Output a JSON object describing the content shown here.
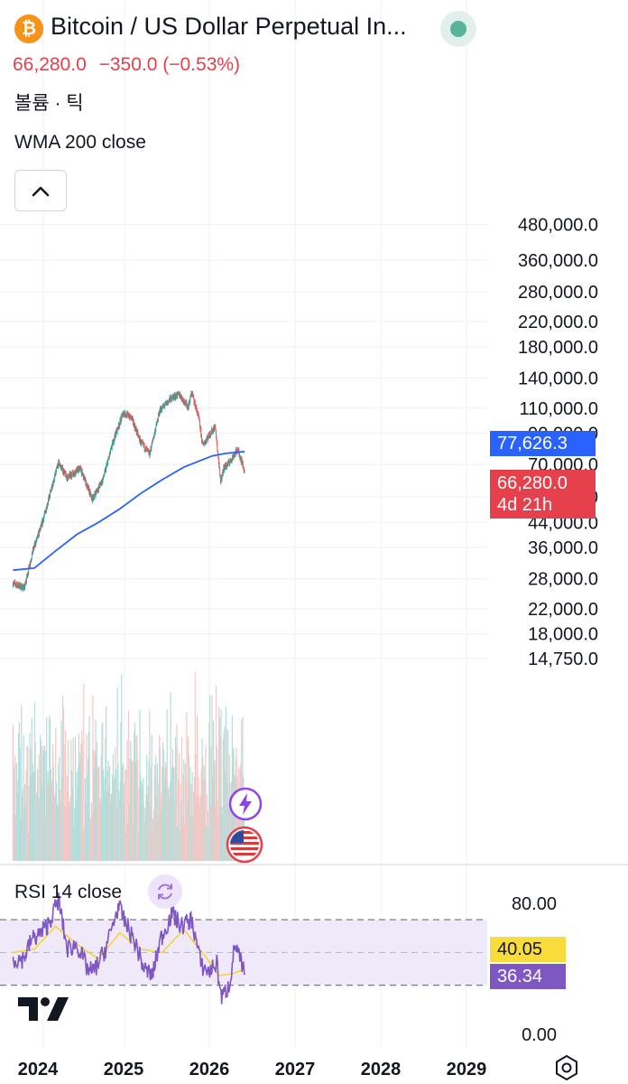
{
  "header": {
    "coin_icon": "bitcoin-icon",
    "coin_symbol": "₿",
    "title": "Bitcoin / US Dollar Perpetual In...",
    "price": "66,280.0",
    "change": "−350.0 (−0.53%)",
    "volume_label": "볼륨 · 틱",
    "wma_label": "WMA 200 close",
    "rsi_label": "RSI 14 close"
  },
  "axis_tags": {
    "wma_value": "77,626.3",
    "price_value": "66,280.0",
    "countdown": "4d 21h",
    "rsi_ma_value": "40.05",
    "rsi_value": "36.34"
  },
  "colors": {
    "up": "#26a69a",
    "down": "#ef5350",
    "wma": "#2962ff",
    "rsi": "#7e57c2",
    "rsi_ma": "#f5d33b",
    "rsi_band": "#efe9fa",
    "price_tag": "#e5404b",
    "wma_tag": "#2962ff",
    "rsi_tag": "#7e57c2",
    "rsi_ma_tag": "#f7dc3b",
    "bitcoin": "#f7931a",
    "status": "#58b49b",
    "negative_text": "#e5404b",
    "grid": "#eef0f3"
  },
  "icons": [
    "chevron-up-icon",
    "flash-icon",
    "us-flag-icon",
    "refresh-icon",
    "tradingview-logo",
    "settings-icon"
  ],
  "chart_data": [
    {
      "type": "candlestick",
      "title": "Bitcoin / US Dollar Perpetual In...",
      "y_scale": "log",
      "y_ticks": [
        480000,
        360000,
        280000,
        220000,
        180000,
        140000,
        110000,
        90000,
        70000,
        54000,
        44000,
        36000,
        28000,
        22000,
        18000,
        14750
      ],
      "y_tick_labels": [
        "480,000.0",
        "360,000.0",
        "280,000.0",
        "220,000.0",
        "180,000.0",
        "140,000.0",
        "110,000.0",
        "90,000.0",
        "70,000.0",
        "54,000.0",
        "44,000.0",
        "36,000.0",
        "28,000.0",
        "22,000.0",
        "18,000.0",
        "14,750.0"
      ],
      "x_ticks": [
        "2024",
        "2025",
        "2026",
        "2027",
        "2028",
        "2029"
      ],
      "x_range": [
        "2023-09",
        "2029-06"
      ],
      "last_price": 66280.0,
      "price_anchors": {
        "date": [
          "2023-09",
          "2023-10-20",
          "2023-11-25",
          "2024-01-05",
          "2024-03-14",
          "2024-04-20",
          "2024-06-15",
          "2024-08-05",
          "2024-09-20",
          "2024-11-10",
          "2024-12-17",
          "2025-01-20",
          "2025-02-28",
          "2025-04-08",
          "2025-05-22",
          "2025-07-14",
          "2025-08-14",
          "2025-09-20",
          "2025-10-06",
          "2025-11-05",
          "2025-11-21",
          "2026-01-14",
          "2026-02-06",
          "2026-02-20",
          "2026-03-20",
          "2026-04-20",
          "2026-05-10",
          "2026-05-20"
        ],
        "price": [
          27000,
          26000,
          35000,
          44000,
          71000,
          63000,
          68000,
          53000,
          62000,
          88000,
          106000,
          102000,
          84000,
          76000,
          108000,
          120000,
          123000,
          111000,
          125000,
          101000,
          82000,
          95000,
          61000,
          68000,
          72000,
          79000,
          71000,
          66280
        ]
      },
      "wma200": {
        "date": [
          "2023-09",
          "2023-12",
          "2024-03",
          "2024-06",
          "2024-09",
          "2024-12",
          "2025-03",
          "2025-06",
          "2025-09",
          "2026-01",
          "2026-03",
          "2026-05-20"
        ],
        "value": [
          30000,
          30500,
          35000,
          40000,
          44000,
          49000,
          55500,
          62000,
          68500,
          75000,
          76500,
          77626.3
        ]
      },
      "volume": "histogram in lower panel, green/red bars, unlabeled"
    },
    {
      "type": "line",
      "title": "RSI 14 close",
      "y_ticks": [
        80.0,
        0.0
      ],
      "y_tick_labels": [
        "80.00",
        "0.00"
      ],
      "band": [
        30,
        70
      ],
      "midline": 50,
      "series": [
        {
          "name": "RSI",
          "date": [
            "2023-09",
            "2023-10-15",
            "2023-11-20",
            "2024-01-01",
            "2024-02-01",
            "2024-03-14",
            "2024-04-20",
            "2024-06-01",
            "2024-07-15",
            "2024-08-10",
            "2024-10-01",
            "2024-11-25",
            "2024-12-20",
            "2025-02-10",
            "2025-03-15",
            "2025-04-20",
            "2025-05-25",
            "2025-07-14",
            "2025-08-20",
            "2025-10-06",
            "2025-11-15",
            "2025-12-20",
            "2026-01-20",
            "2026-02-10",
            "2026-03-15",
            "2026-04-10",
            "2026-04-25",
            "2026-05-20"
          ],
          "value": [
            46,
            46,
            58,
            62,
            68,
            82,
            52,
            55,
            40,
            38,
            52,
            78,
            70,
            54,
            40,
            36,
            58,
            74,
            66,
            70,
            42,
            38,
            44,
            22,
            30,
            56,
            48,
            36.34
          ]
        },
        {
          "name": "RSI-based MA",
          "date": [
            "2023-09",
            "2023-12",
            "2024-03",
            "2024-06",
            "2024-09",
            "2024-12",
            "2025-03",
            "2025-06",
            "2025-09",
            "2025-12",
            "2026-02",
            "2026-04",
            "2026-05-20"
          ],
          "value": [
            50,
            52,
            66,
            55,
            46,
            62,
            52,
            50,
            64,
            48,
            36,
            37,
            40.05
          ]
        }
      ]
    }
  ]
}
